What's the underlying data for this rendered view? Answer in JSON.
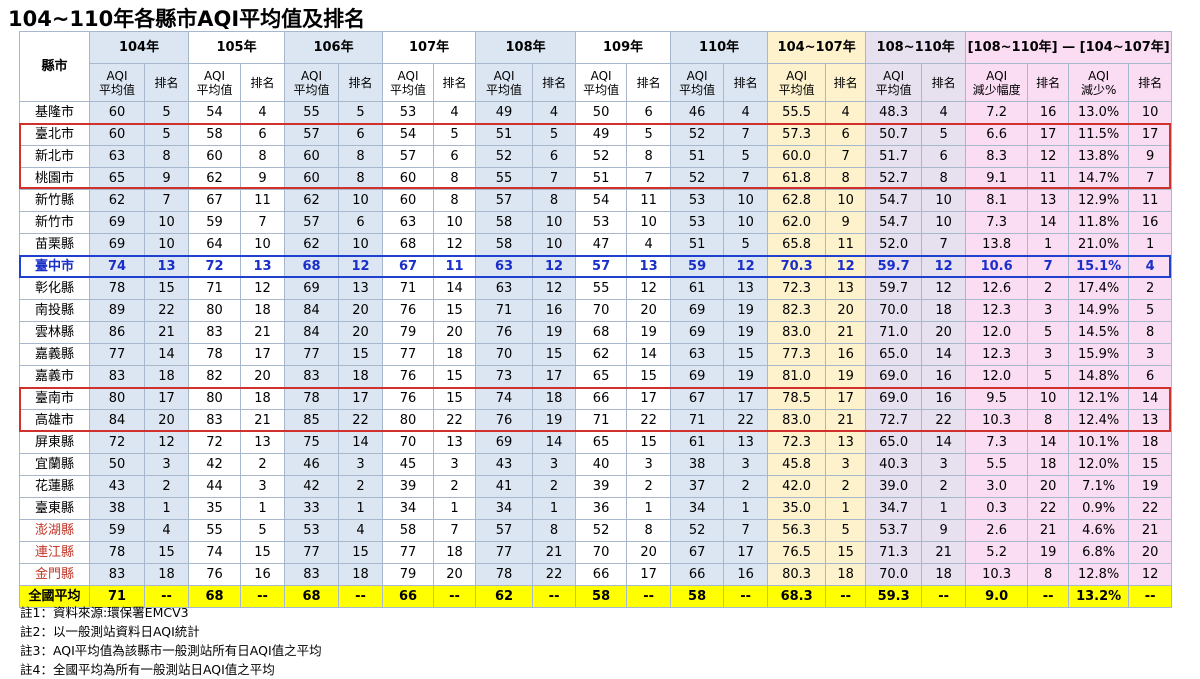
{
  "title": "104~110年各縣市AQI平均值及排名",
  "header": {
    "county_label": "縣市",
    "groups": [
      "104年",
      "105年",
      "106年",
      "107年",
      "108年",
      "109年",
      "110年",
      "104~107年",
      "108~110年",
      "[108~110年] — [104~107年]"
    ],
    "avg_label": "AQI\n平均值",
    "rank_label": "排名",
    "reduce_label": "AQI\n減少幅度",
    "reduce_pct_label": "AQI\n減少%"
  },
  "rows": [
    {
      "county": "基隆市",
      "v": [
        "60",
        "5",
        "54",
        "4",
        "55",
        "5",
        "53",
        "4",
        "49",
        "4",
        "50",
        "6",
        "46",
        "4",
        "55.5",
        "4",
        "48.3",
        "4",
        "7.2",
        "16",
        "13.0%",
        "10"
      ]
    },
    {
      "county": "臺北市",
      "v": [
        "60",
        "5",
        "58",
        "6",
        "57",
        "6",
        "54",
        "5",
        "51",
        "5",
        "49",
        "5",
        "52",
        "7",
        "57.3",
        "6",
        "50.7",
        "5",
        "6.6",
        "17",
        "11.5%",
        "17"
      ]
    },
    {
      "county": "新北市",
      "v": [
        "63",
        "8",
        "60",
        "8",
        "60",
        "8",
        "57",
        "6",
        "52",
        "6",
        "52",
        "8",
        "51",
        "5",
        "60.0",
        "7",
        "51.7",
        "6",
        "8.3",
        "12",
        "13.8%",
        "9"
      ]
    },
    {
      "county": "桃園市",
      "v": [
        "65",
        "9",
        "62",
        "9",
        "60",
        "8",
        "60",
        "8",
        "55",
        "7",
        "51",
        "7",
        "52",
        "7",
        "61.8",
        "8",
        "52.7",
        "8",
        "9.1",
        "11",
        "14.7%",
        "7"
      ]
    },
    {
      "county": "新竹縣",
      "v": [
        "62",
        "7",
        "67",
        "11",
        "62",
        "10",
        "60",
        "8",
        "57",
        "8",
        "54",
        "11",
        "53",
        "10",
        "62.8",
        "10",
        "54.7",
        "10",
        "8.1",
        "13",
        "12.9%",
        "11"
      ]
    },
    {
      "county": "新竹市",
      "v": [
        "69",
        "10",
        "59",
        "7",
        "57",
        "6",
        "63",
        "10",
        "58",
        "10",
        "53",
        "10",
        "53",
        "10",
        "62.0",
        "9",
        "54.7",
        "10",
        "7.3",
        "14",
        "11.8%",
        "16"
      ]
    },
    {
      "county": "苗栗縣",
      "v": [
        "69",
        "10",
        "64",
        "10",
        "62",
        "10",
        "68",
        "12",
        "58",
        "10",
        "47",
        "4",
        "51",
        "5",
        "65.8",
        "11",
        "52.0",
        "7",
        "13.8",
        "1",
        "21.0%",
        "1"
      ]
    },
    {
      "county": "臺中市",
      "v": [
        "74",
        "13",
        "72",
        "13",
        "68",
        "12",
        "67",
        "11",
        "63",
        "12",
        "57",
        "13",
        "59",
        "12",
        "70.3",
        "12",
        "59.7",
        "12",
        "10.6",
        "7",
        "15.1%",
        "4"
      ]
    },
    {
      "county": "彰化縣",
      "v": [
        "78",
        "15",
        "71",
        "12",
        "69",
        "13",
        "71",
        "14",
        "63",
        "12",
        "55",
        "12",
        "61",
        "13",
        "72.3",
        "13",
        "59.7",
        "12",
        "12.6",
        "2",
        "17.4%",
        "2"
      ]
    },
    {
      "county": "南投縣",
      "v": [
        "89",
        "22",
        "80",
        "18",
        "84",
        "20",
        "76",
        "15",
        "71",
        "16",
        "70",
        "20",
        "69",
        "19",
        "82.3",
        "20",
        "70.0",
        "18",
        "12.3",
        "3",
        "14.9%",
        "5"
      ]
    },
    {
      "county": "雲林縣",
      "v": [
        "86",
        "21",
        "83",
        "21",
        "84",
        "20",
        "79",
        "20",
        "76",
        "19",
        "68",
        "19",
        "69",
        "19",
        "83.0",
        "21",
        "71.0",
        "20",
        "12.0",
        "5",
        "14.5%",
        "8"
      ]
    },
    {
      "county": "嘉義縣",
      "v": [
        "77",
        "14",
        "78",
        "17",
        "77",
        "15",
        "77",
        "18",
        "70",
        "15",
        "62",
        "14",
        "63",
        "15",
        "77.3",
        "16",
        "65.0",
        "14",
        "12.3",
        "3",
        "15.9%",
        "3"
      ]
    },
    {
      "county": "嘉義市",
      "v": [
        "83",
        "18",
        "82",
        "20",
        "83",
        "18",
        "76",
        "15",
        "73",
        "17",
        "65",
        "15",
        "69",
        "19",
        "81.0",
        "19",
        "69.0",
        "16",
        "12.0",
        "5",
        "14.8%",
        "6"
      ]
    },
    {
      "county": "臺南市",
      "v": [
        "80",
        "17",
        "80",
        "18",
        "78",
        "17",
        "76",
        "15",
        "74",
        "18",
        "66",
        "17",
        "67",
        "17",
        "78.5",
        "17",
        "69.0",
        "16",
        "9.5",
        "10",
        "12.1%",
        "14"
      ]
    },
    {
      "county": "高雄市",
      "v": [
        "84",
        "20",
        "83",
        "21",
        "85",
        "22",
        "80",
        "22",
        "76",
        "19",
        "71",
        "22",
        "71",
        "22",
        "83.0",
        "21",
        "72.7",
        "22",
        "10.3",
        "8",
        "12.4%",
        "13"
      ]
    },
    {
      "county": "屏東縣",
      "v": [
        "72",
        "12",
        "72",
        "13",
        "75",
        "14",
        "70",
        "13",
        "69",
        "14",
        "65",
        "15",
        "61",
        "13",
        "72.3",
        "13",
        "65.0",
        "14",
        "7.3",
        "14",
        "10.1%",
        "18"
      ]
    },
    {
      "county": "宜蘭縣",
      "v": [
        "50",
        "3",
        "42",
        "2",
        "46",
        "3",
        "45",
        "3",
        "43",
        "3",
        "40",
        "3",
        "38",
        "3",
        "45.8",
        "3",
        "40.3",
        "3",
        "5.5",
        "18",
        "12.0%",
        "15"
      ]
    },
    {
      "county": "花蓮縣",
      "v": [
        "43",
        "2",
        "44",
        "3",
        "42",
        "2",
        "39",
        "2",
        "41",
        "2",
        "39",
        "2",
        "37",
        "2",
        "42.0",
        "2",
        "39.0",
        "2",
        "3.0",
        "20",
        "7.1%",
        "19"
      ]
    },
    {
      "county": "臺東縣",
      "v": [
        "38",
        "1",
        "35",
        "1",
        "33",
        "1",
        "34",
        "1",
        "34",
        "1",
        "36",
        "1",
        "34",
        "1",
        "35.0",
        "1",
        "34.7",
        "1",
        "0.3",
        "22",
        "0.9%",
        "22"
      ]
    },
    {
      "county": "澎湖縣",
      "v": [
        "59",
        "4",
        "55",
        "5",
        "53",
        "4",
        "58",
        "7",
        "57",
        "8",
        "52",
        "8",
        "52",
        "7",
        "56.3",
        "5",
        "53.7",
        "9",
        "2.6",
        "21",
        "4.6%",
        "21"
      ]
    },
    {
      "county": "連江縣",
      "v": [
        "78",
        "15",
        "74",
        "15",
        "77",
        "15",
        "77",
        "18",
        "77",
        "21",
        "70",
        "20",
        "67",
        "17",
        "76.5",
        "15",
        "71.3",
        "21",
        "5.2",
        "19",
        "6.8%",
        "20"
      ]
    },
    {
      "county": "金門縣",
      "v": [
        "83",
        "18",
        "76",
        "16",
        "83",
        "18",
        "79",
        "20",
        "78",
        "22",
        "66",
        "17",
        "66",
        "16",
        "80.3",
        "18",
        "70.0",
        "18",
        "10.3",
        "8",
        "12.8%",
        "12"
      ]
    }
  ],
  "national": {
    "county": "全國平均",
    "v": [
      "71",
      "--",
      "68",
      "--",
      "68",
      "--",
      "66",
      "--",
      "62",
      "--",
      "58",
      "--",
      "58",
      "--",
      "68.3",
      "--",
      "59.3",
      "--",
      "9.0",
      "--",
      "13.2%",
      "--"
    ]
  },
  "notes": [
    "註1：資料來源:環保署EMCV3",
    "註2：以一般測站資料日AQI統計",
    "註3：AQI平均值為該縣市一般測站所有日AQI值之平均",
    "註4：全國平均為所有一般測站日AQI值之平均"
  ],
  "colors": {
    "highlight_red": "#d0312d",
    "highlight_blue": "#2040d0",
    "taichung_text": "#1a2ec8",
    "island_text": "#c0392b",
    "national_bg": "#ffff00"
  }
}
